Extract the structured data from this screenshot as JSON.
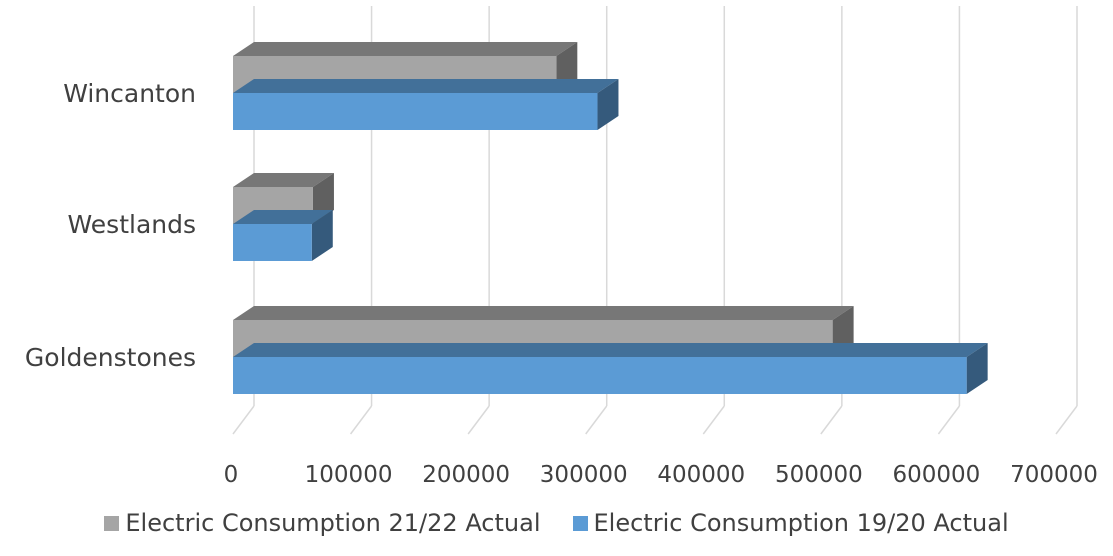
{
  "chart_data": {
    "type": "bar",
    "orientation": "horizontal",
    "style": "3d",
    "categories": [
      "Wincanton",
      "Westlands",
      "Goldenstones"
    ],
    "series": [
      {
        "name": "Electric Consumption 21/22 Actual",
        "color": "#A5A5A5",
        "values": [
          275000,
          68000,
          510000
        ]
      },
      {
        "name": "Electric Consumption 19/20 Actual",
        "color": "#5B9BD5",
        "values": [
          310000,
          67000,
          624000
        ]
      }
    ],
    "x_ticks": [
      "0",
      "100000",
      "200000",
      "300000",
      "400000",
      "500000",
      "600000",
      "700000"
    ],
    "xlim": [
      0,
      700000
    ],
    "grid": true,
    "legend_position": "bottom"
  }
}
